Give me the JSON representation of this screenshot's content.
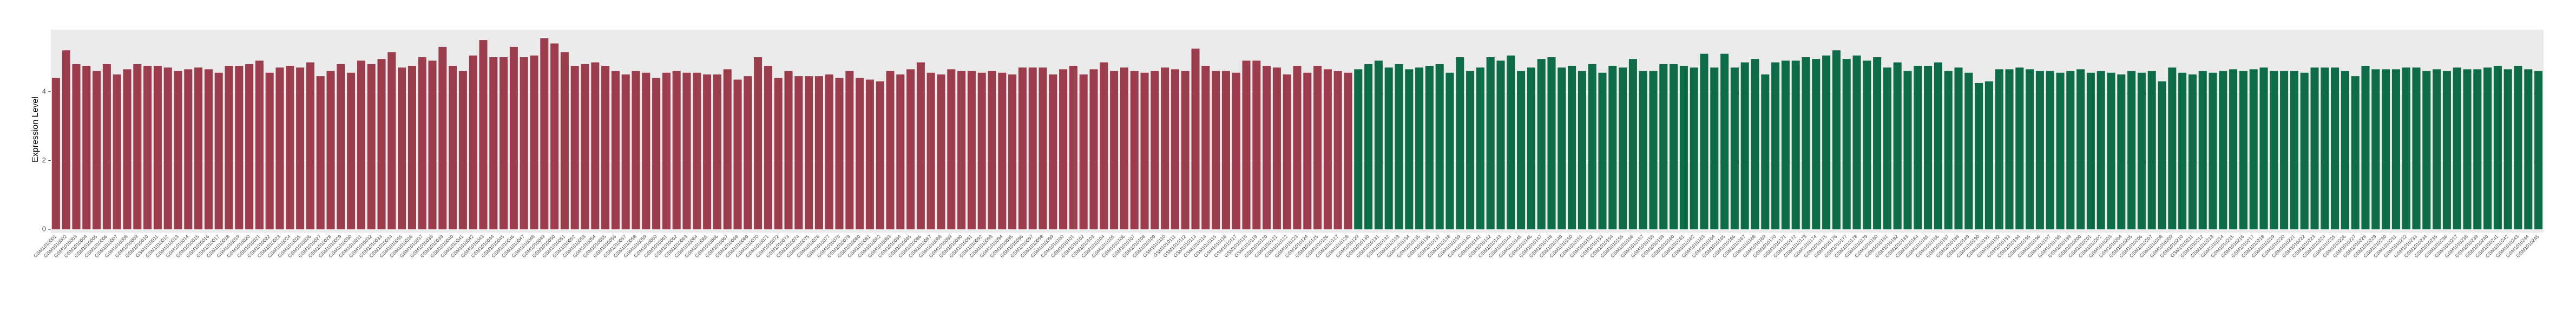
{
  "chart_data": {
    "type": "bar",
    "y_label": "Expression Level",
    "categories": [
      "GSM1010001",
      "GSM1010002",
      "GSM1010003",
      "GSM1010004",
      "GSM1010005",
      "GSM1010006",
      "GSM1010007",
      "GSM1010008",
      "GSM1010009",
      "GSM1010010",
      "GSM1010011",
      "GSM1010012",
      "GSM1010013",
      "GSM1010014",
      "GSM1010015",
      "GSM1010016",
      "GSM1010017",
      "GSM1010018",
      "GSM1010019",
      "GSM1010020",
      "GSM1010021",
      "GSM1010022",
      "GSM1010023",
      "GSM1010024",
      "GSM1010025",
      "GSM1010026",
      "GSM1010027",
      "GSM1010028",
      "GSM1010029",
      "GSM1010030",
      "GSM1010031",
      "GSM1010032",
      "GSM1010033",
      "GSM1010034",
      "GSM1010035",
      "GSM1010036",
      "GSM1010037",
      "GSM1010038",
      "GSM1010039",
      "GSM1010040",
      "GSM1010041",
      "GSM1010042",
      "GSM1010043",
      "GSM1010044",
      "GSM1010045",
      "GSM1010046",
      "GSM1010047",
      "GSM1010048",
      "GSM1010049",
      "GSM1010050",
      "GSM1010051",
      "GSM1010052",
      "GSM1010053",
      "GSM1010054",
      "GSM1010055",
      "GSM1010056",
      "GSM1010057",
      "GSM1010058",
      "GSM1010059",
      "GSM1010060",
      "GSM1010061",
      "GSM1010062",
      "GSM1010063",
      "GSM1010064",
      "GSM1010065",
      "GSM1010066",
      "GSM1010067",
      "GSM1010068",
      "GSM1010069",
      "GSM1010070",
      "GSM1010071",
      "GSM1010072",
      "GSM1010073",
      "GSM1010074",
      "GSM1010075",
      "GSM1010076",
      "GSM1010077",
      "GSM1010078",
      "GSM1010079",
      "GSM1010080",
      "GSM1010081",
      "GSM1010082",
      "GSM1010083",
      "GSM1010084",
      "GSM1010085",
      "GSM1010086",
      "GSM1010087",
      "GSM1010088",
      "GSM1010089",
      "GSM1010090",
      "GSM1010091",
      "GSM1010092",
      "GSM1010093",
      "GSM1010094",
      "GSM1010095",
      "GSM1010096",
      "GSM1010097",
      "GSM1010098",
      "GSM1010099",
      "GSM1010100",
      "GSM1010101",
      "GSM1010102",
      "GSM1010103",
      "GSM1010104",
      "GSM1010105",
      "GSM1010106",
      "GSM1010107",
      "GSM1010108",
      "GSM1010109",
      "GSM1010110",
      "GSM1010111",
      "GSM1010112",
      "GSM1010113",
      "GSM1010114",
      "GSM1010115",
      "GSM1010116",
      "GSM1010117",
      "GSM1010118",
      "GSM1010119",
      "GSM1010120",
      "GSM1010121",
      "GSM1010122",
      "GSM1010123",
      "GSM1010124",
      "GSM1010125",
      "GSM1010126",
      "GSM1010127",
      "GSM1010128",
      "GSM1010129",
      "GSM1010130",
      "GSM1010131",
      "GSM1010132",
      "GSM1010133",
      "GSM1010134",
      "GSM1010135",
      "GSM1010136",
      "GSM1010137",
      "GSM1010138",
      "GSM1010139",
      "GSM1010140",
      "GSM1010141",
      "GSM1010142",
      "GSM1010143",
      "GSM1010144",
      "GSM1010145",
      "GSM1010146",
      "GSM1010147",
      "GSM1010148",
      "GSM1010149",
      "GSM1010150",
      "GSM1010151",
      "GSM1010152",
      "GSM1010153",
      "GSM1010154",
      "GSM1010155",
      "GSM1010156",
      "GSM1010157",
      "GSM1010158",
      "GSM1010159",
      "GSM1010160",
      "GSM1010161",
      "GSM1010162",
      "GSM1010163",
      "GSM1010164",
      "GSM1010165",
      "GSM1010166",
      "GSM1010167",
      "GSM1010168",
      "GSM1010169",
      "GSM1010170",
      "GSM1010171",
      "GSM1010172",
      "GSM1010173",
      "GSM1010174",
      "GSM1010175",
      "GSM1010176",
      "GSM1010177",
      "GSM1010178",
      "GSM1010179",
      "GSM1010180",
      "GSM1010181",
      "GSM1010182",
      "GSM1010183",
      "GSM1010184",
      "GSM1010185",
      "GSM1010186",
      "GSM1010187",
      "GSM1010188",
      "GSM1010189",
      "GSM1010190",
      "GSM1010191",
      "GSM1010192",
      "GSM1010193",
      "GSM1010194",
      "GSM1010195",
      "GSM1010196",
      "GSM1010197",
      "GSM1010198",
      "GSM1010199",
      "GSM1010200",
      "GSM1010201",
      "GSM1010202",
      "GSM1010203",
      "GSM1010204",
      "GSM1010205",
      "GSM1010206",
      "GSM1010207",
      "GSM1010208",
      "GSM1010209",
      "GSM1010210",
      "GSM1010211",
      "GSM1010212",
      "GSM1010213",
      "GSM1010214",
      "GSM1010215",
      "GSM1010216",
      "GSM1010217",
      "GSM1010218",
      "GSM1010219",
      "GSM1010220",
      "GSM1010221",
      "GSM1010222",
      "GSM1010223",
      "GSM1010224",
      "GSM1010225",
      "GSM1010226",
      "GSM1010227",
      "GSM1010228",
      "GSM1010229",
      "GSM1010230",
      "GSM1010231",
      "GSM1010232",
      "GSM1010233",
      "GSM1010234",
      "GSM1010235",
      "GSM1010236",
      "GSM1010237",
      "GSM1010238",
      "GSM1010239",
      "GSM1010240",
      "GSM1010241",
      "GSM1010242",
      "GSM1010243",
      "GSM1010244",
      "GSM1010245"
    ],
    "series": [
      {
        "color": "#9b3d4c",
        "values": [
          4.4,
          5.2,
          4.8,
          4.75,
          4.6,
          4.8,
          4.5,
          4.65,
          4.8,
          4.75,
          4.75,
          4.7,
          4.6,
          4.65,
          4.7,
          4.65,
          4.55,
          4.75,
          4.75,
          4.8,
          4.9,
          4.55,
          4.7,
          4.75,
          4.7,
          4.85,
          4.45,
          4.6,
          4.8,
          4.55,
          4.9,
          4.8,
          4.95,
          5.15,
          4.7,
          4.75,
          5.0,
          4.9,
          5.3,
          4.75,
          4.6,
          5.05,
          5.5,
          5.0,
          5.0,
          5.3,
          5.0,
          5.05,
          5.55,
          5.4,
          5.15,
          4.75,
          4.8,
          4.85,
          4.75,
          4.6,
          4.5,
          4.6,
          4.55,
          4.4,
          4.55,
          4.6,
          4.55,
          4.55,
          4.5,
          4.5,
          4.65,
          4.35,
          4.45,
          5.0,
          4.75,
          4.4,
          4.6,
          4.45,
          4.45,
          4.45,
          4.5,
          4.4,
          4.6,
          4.4,
          4.35,
          4.3,
          4.6,
          4.5,
          4.65,
          4.85,
          4.55,
          4.5,
          4.65,
          4.6,
          4.6,
          4.55,
          4.6,
          4.55,
          4.5,
          4.7,
          4.7,
          4.7,
          4.5,
          4.65,
          4.75,
          4.5,
          4.65,
          4.85,
          4.6,
          4.7,
          4.6,
          4.55,
          4.6,
          4.7,
          4.65,
          4.6,
          5.25,
          4.75,
          4.6,
          4.6,
          4.55,
          4.9,
          4.9,
          4.75,
          4.7,
          4.5,
          4.75,
          4.55,
          4.75,
          4.65,
          4.6,
          4.55,
          null,
          null,
          null,
          null,
          null,
          null,
          null,
          null,
          null,
          null,
          null,
          null,
          null,
          null,
          null,
          null,
          null,
          null,
          null,
          null,
          null,
          null,
          null,
          null,
          null,
          null,
          null,
          null,
          null,
          null,
          null,
          null,
          null,
          null,
          null,
          null,
          null,
          null,
          null,
          null,
          null,
          null,
          null,
          null,
          null,
          null,
          null,
          null,
          null,
          null,
          null,
          null,
          null,
          null,
          null,
          null,
          null,
          null,
          null,
          null,
          null,
          null,
          null,
          null,
          null,
          null,
          null,
          null,
          null,
          null,
          null,
          null,
          null,
          null,
          null,
          null,
          null,
          null,
          null,
          null,
          null,
          null,
          null,
          null,
          null,
          null,
          null,
          null,
          null,
          null,
          null,
          null,
          null,
          null,
          null,
          null,
          null,
          null,
          null,
          null,
          null,
          null,
          null,
          null,
          null,
          null,
          null,
          null,
          null,
          null,
          null,
          null,
          null,
          null,
          null,
          null,
          null
        ]
      },
      {
        "color": "#0e6b47",
        "values": [
          null,
          null,
          null,
          null,
          null,
          null,
          null,
          null,
          null,
          null,
          null,
          null,
          null,
          null,
          null,
          null,
          null,
          null,
          null,
          null,
          null,
          null,
          null,
          null,
          null,
          null,
          null,
          null,
          null,
          null,
          null,
          null,
          null,
          null,
          null,
          null,
          null,
          null,
          null,
          null,
          null,
          null,
          null,
          null,
          null,
          null,
          null,
          null,
          null,
          null,
          null,
          null,
          null,
          null,
          null,
          null,
          null,
          null,
          null,
          null,
          null,
          null,
          null,
          null,
          null,
          null,
          null,
          null,
          null,
          null,
          null,
          null,
          null,
          null,
          null,
          null,
          null,
          null,
          null,
          null,
          null,
          null,
          null,
          null,
          null,
          null,
          null,
          null,
          null,
          null,
          null,
          null,
          null,
          null,
          null,
          null,
          null,
          null,
          null,
          null,
          null,
          null,
          null,
          null,
          null,
          null,
          null,
          null,
          null,
          null,
          null,
          null,
          null,
          null,
          null,
          null,
          null,
          null,
          null,
          null,
          null,
          null,
          null,
          null,
          null,
          null,
          null,
          null,
          4.65,
          4.8,
          4.9,
          4.7,
          4.8,
          4.65,
          4.7,
          4.75,
          4.8,
          4.55,
          5.0,
          4.6,
          4.7,
          5.0,
          4.9,
          5.05,
          4.6,
          4.7,
          4.95,
          5.0,
          4.7,
          4.75,
          4.6,
          4.8,
          4.55,
          4.75,
          4.7,
          4.95,
          4.6,
          4.6,
          4.8,
          4.8,
          4.75,
          4.7,
          5.1,
          4.7,
          5.1,
          4.7,
          4.85,
          4.95,
          4.5,
          4.85,
          4.9,
          4.9,
          5.0,
          4.95,
          5.05,
          5.2,
          4.95,
          5.05,
          4.9,
          5.0,
          4.7,
          4.85,
          4.6,
          4.75,
          4.75,
          4.85,
          4.6,
          4.7,
          4.55,
          4.25,
          4.3,
          4.65,
          4.65,
          4.7,
          4.65,
          4.6,
          4.6,
          4.55,
          4.6,
          4.65,
          4.55,
          4.6,
          4.55,
          4.5,
          4.6,
          4.55,
          4.6,
          4.3,
          4.7,
          4.55,
          4.5,
          4.6,
          4.55,
          4.6,
          4.65,
          4.6,
          4.65,
          4.7,
          4.6,
          4.6,
          4.6,
          4.55,
          4.7,
          4.7,
          4.7,
          4.6,
          4.45,
          4.75,
          4.65,
          4.65,
          4.65,
          4.7,
          4.7,
          4.6,
          4.65,
          4.6,
          4.7,
          4.65,
          4.65,
          4.7,
          4.75,
          4.65,
          4.75,
          4.65,
          4.6
        ]
      }
    ],
    "ylim": [
      0,
      5.8
    ],
    "yticks": [
      0,
      2,
      4
    ],
    "grid": true,
    "panel_color": "#ebebeb"
  }
}
